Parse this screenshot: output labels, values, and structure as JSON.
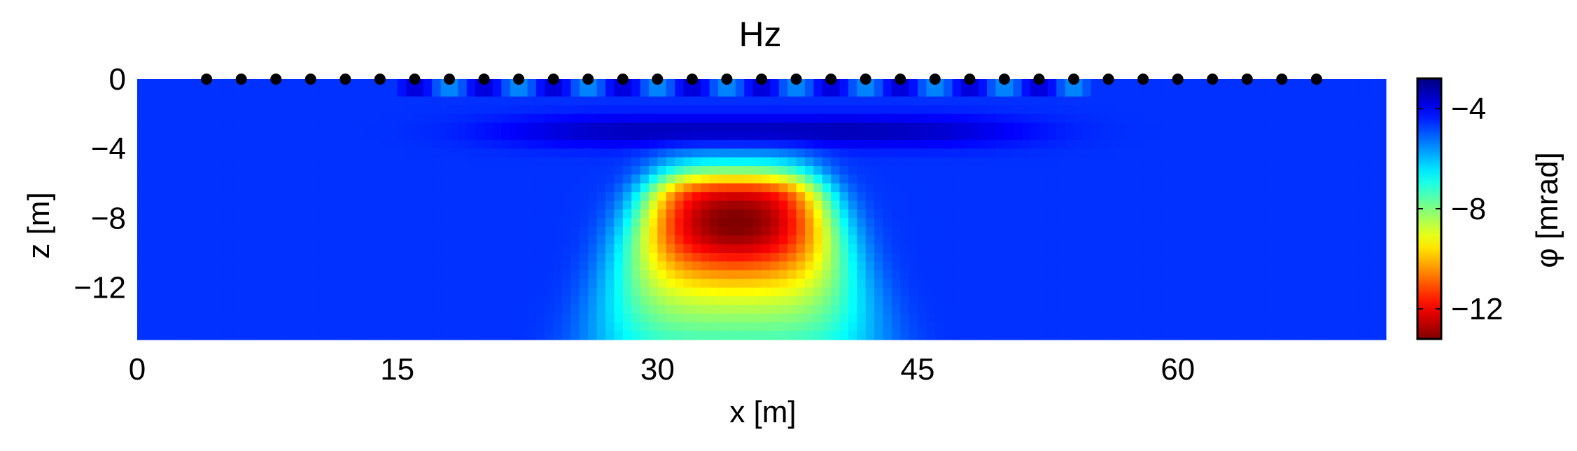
{
  "chart_data": {
    "type": "heatmap",
    "title": "Hz",
    "xlabel": "x [m]",
    "ylabel": "z [m]",
    "xlim": [
      0,
      72
    ],
    "ylim": [
      -15,
      0
    ],
    "x_ticks": [
      0,
      15,
      30,
      45,
      60
    ],
    "y_ticks": [
      0,
      -4,
      -8,
      -12
    ],
    "x_tick_labels": [
      "0",
      "15",
      "30",
      "45",
      "60"
    ],
    "y_tick_labels": [
      "0",
      "−4",
      "−8",
      "−12"
    ],
    "grid": false,
    "colormap": "jet (reversed)",
    "colorbar": {
      "label": "φ [mrad]",
      "range": [
        -13.2,
        -2.8
      ],
      "ticks": [
        -4,
        -8,
        -12
      ],
      "tick_labels": [
        "−4",
        "−8",
        "−12"
      ],
      "position": "right"
    },
    "field": {
      "description_values": "phase in mrad, estimated from colors",
      "background": -4.6,
      "anomaly_center": [
        34.5,
        -8.5
      ],
      "anomaly_peak": -13.2,
      "near_surface_band_depth": -3.0,
      "near_surface_band_value": -3.3
    },
    "electrodes_x": [
      4,
      6,
      8,
      10,
      12,
      14,
      16,
      18,
      20,
      22,
      24,
      26,
      28,
      30,
      32,
      34,
      36,
      38,
      40,
      42,
      44,
      46,
      48,
      50,
      52,
      54,
      56,
      58,
      60,
      62,
      64,
      66,
      68
    ],
    "electrode_z": 0
  },
  "colors": {
    "marker": "#000000",
    "axis": "#000000"
  }
}
